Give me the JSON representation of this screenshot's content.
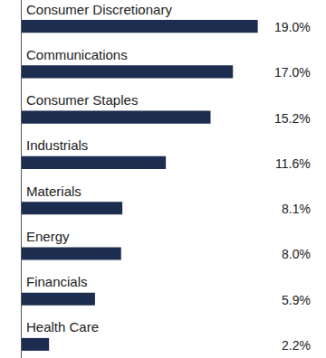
{
  "chart_data": {
    "type": "bar",
    "orientation": "horizontal",
    "categories": [
      "Consumer Discretionary",
      "Communications",
      "Consumer Staples",
      "Industrials",
      "Materials",
      "Energy",
      "Financials",
      "Health Care"
    ],
    "values": [
      19.0,
      17.0,
      15.2,
      11.6,
      8.1,
      8.0,
      5.9,
      2.2
    ],
    "value_labels": [
      "19.0%",
      "17.0%",
      "15.2%",
      "11.6%",
      "8.1%",
      "8.0%",
      "5.9%",
      "2.2%"
    ],
    "color": "#1c2d4f",
    "xlim": [
      0,
      23.4
    ],
    "data_labels": true,
    "tick_labels": false,
    "grid": false
  }
}
